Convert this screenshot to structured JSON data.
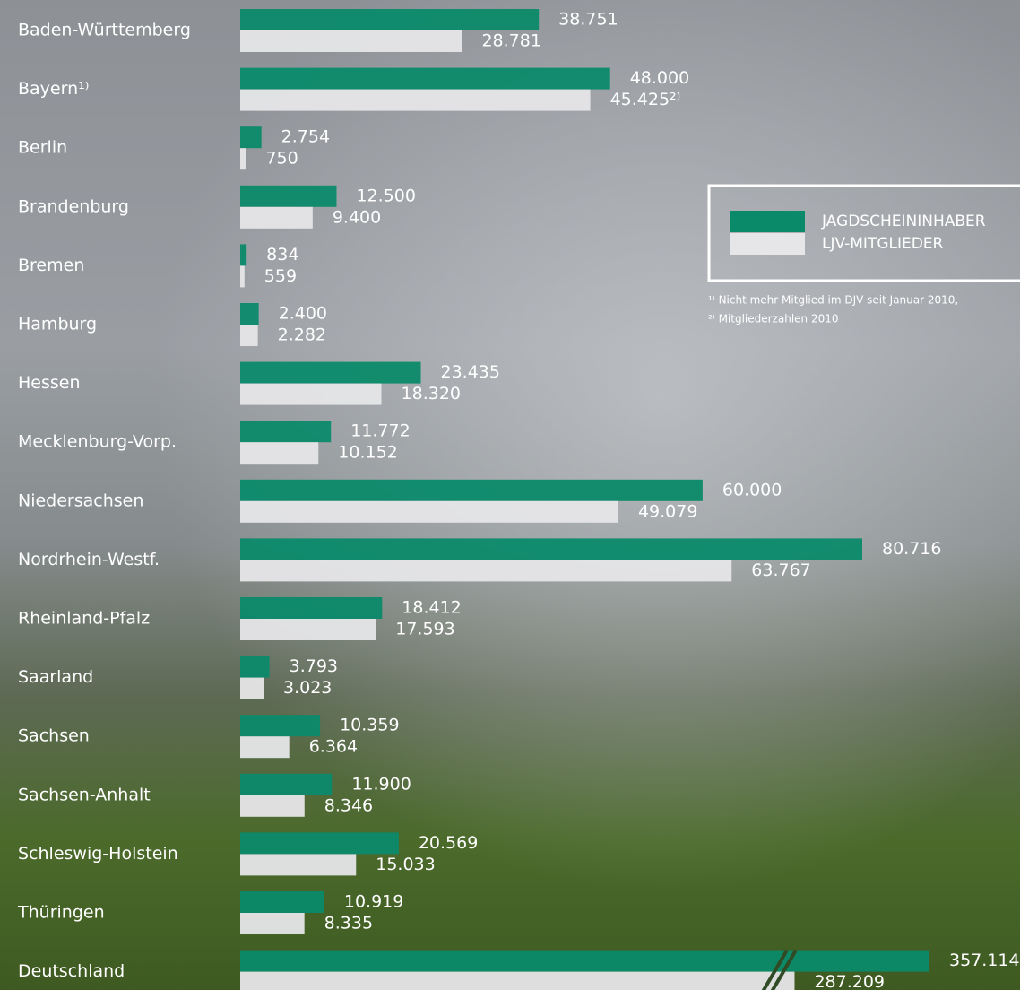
{
  "chart_data": {
    "type": "hbar",
    "categories": [
      "Baden-Württemberg",
      "Bayern¹⁾",
      "Berlin",
      "Brandenburg",
      "Bremen",
      "Hamburg",
      "Hessen",
      "Mecklenburg-Vorp.",
      "Niedersachsen",
      "Nordrhein-Westf.",
      "Rheinland-Pfalz",
      "Saarland",
      "Sachsen",
      "Sachsen-Anhalt",
      "Schleswig-Holstein",
      "Thüringen",
      "Deutschland"
    ],
    "series": [
      {
        "name": "JAGDSCHEININHABER",
        "color": "#0b8a6a",
        "values": [
          38751,
          48000,
          2754,
          12500,
          834,
          2400,
          23435,
          11772,
          60000,
          80716,
          18412,
          3793,
          10359,
          11900,
          20569,
          10919,
          357114
        ],
        "value_labels": [
          "38.751",
          "48.000",
          "2.754",
          "12.500",
          "834",
          "2.400",
          "23.435",
          "11.772",
          "60.000",
          "80.716",
          "18.412",
          "3.793",
          "10.359",
          "11.900",
          "20.569",
          "10.919",
          "357.114"
        ]
      },
      {
        "name": "LJV-MITGLIEDER",
        "color": "#e6e6e8",
        "values": [
          28781,
          45425,
          750,
          9400,
          559,
          2282,
          18320,
          10152,
          49079,
          63767,
          17593,
          3023,
          6364,
          8346,
          15033,
          8335,
          287209
        ],
        "value_labels": [
          "28.781",
          "45.425²⁾",
          "750",
          "9.400",
          "559",
          "2.282",
          "18.320",
          "10.152",
          "49.079",
          "63.767",
          "17.593",
          "3.023",
          "6.364",
          "8.346",
          "15.033",
          "8.335",
          "287.209"
        ]
      }
    ],
    "axis_break": true,
    "footnotes": [
      "¹⁾ Nicht mehr Mitglied im DJV seit Januar 2010,",
      "²⁾ Mitgliederzahlen 2010"
    ]
  }
}
